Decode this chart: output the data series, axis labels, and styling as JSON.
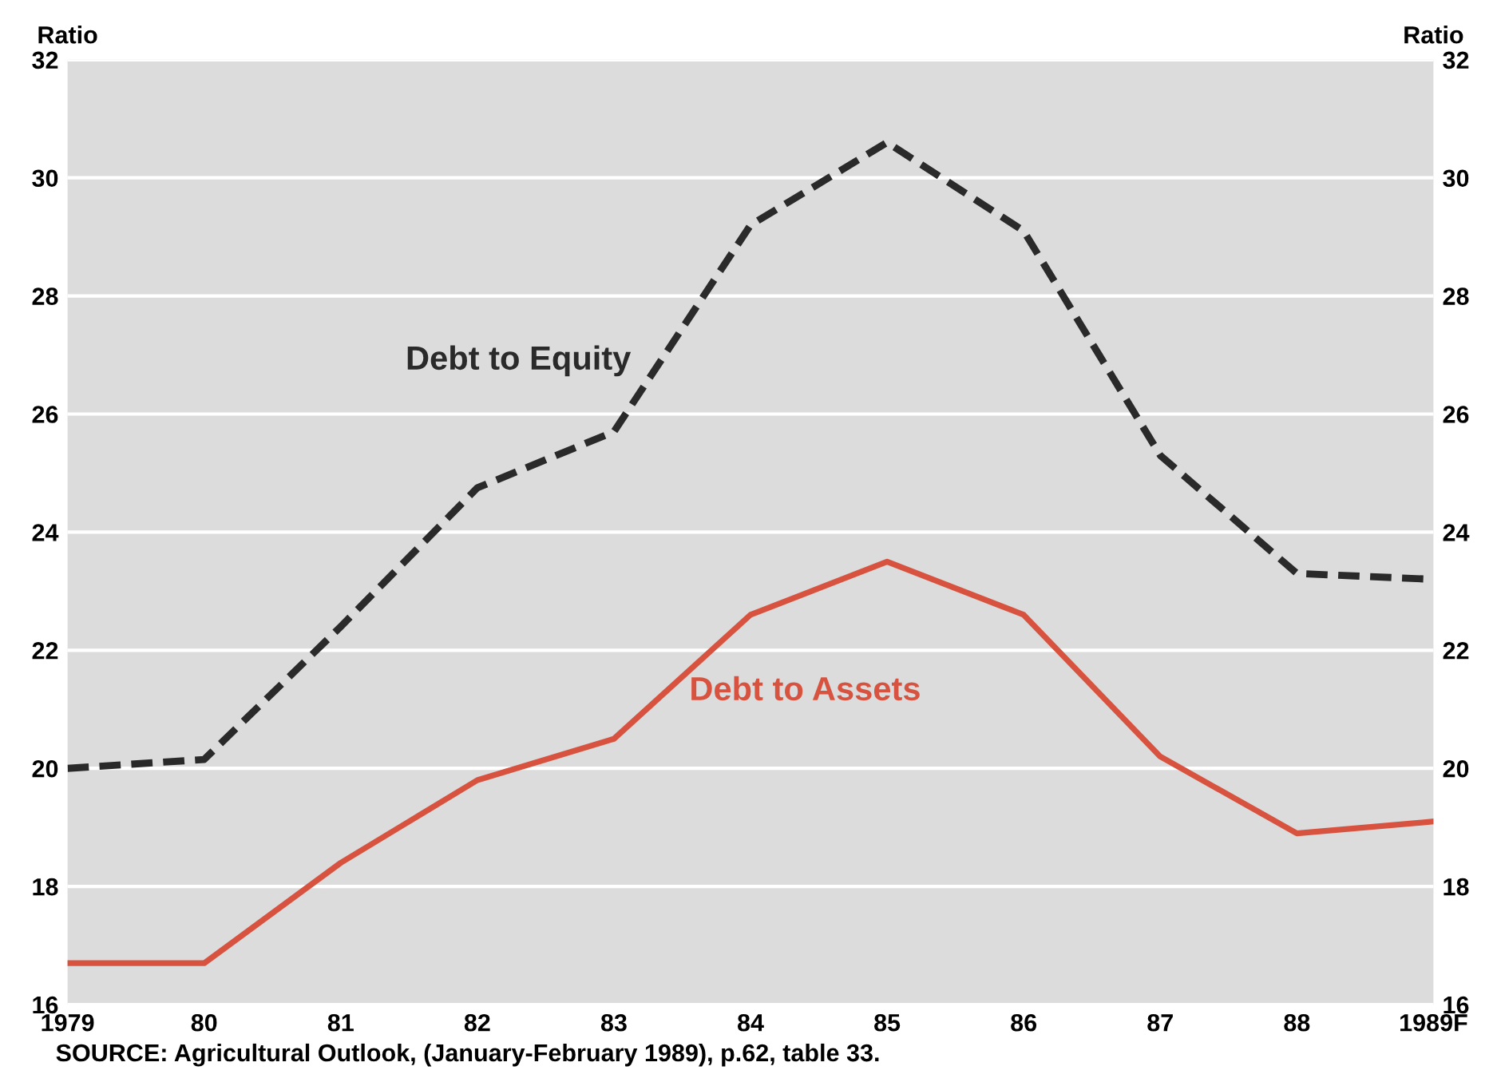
{
  "chart_data": {
    "type": "line",
    "ylabel": "Ratio",
    "y2label": "Ratio",
    "categories": [
      "1979",
      "80",
      "81",
      "82",
      "83",
      "84",
      "85",
      "86",
      "87",
      "88",
      "1989F"
    ],
    "series": [
      {
        "name": "Debt to Equity",
        "color": "#2a2a2a",
        "line_style": "dashed",
        "values": [
          20.0,
          20.15,
          22.4,
          24.75,
          25.7,
          29.2,
          30.6,
          29.1,
          25.3,
          23.3,
          23.2
        ]
      },
      {
        "name": "Debt to Assets",
        "color": "#d8533f",
        "line_style": "solid",
        "values": [
          16.7,
          16.7,
          18.4,
          19.8,
          20.5,
          22.6,
          23.5,
          22.6,
          20.2,
          18.9,
          19.1
        ]
      }
    ],
    "ylim": [
      16,
      32
    ],
    "yticks": [
      16,
      18,
      20,
      22,
      24,
      26,
      28,
      30,
      32
    ],
    "y2lim": [
      16,
      32
    ],
    "y2ticks": [
      16,
      18,
      20,
      22,
      24,
      26,
      28,
      30,
      32
    ],
    "grid": "y",
    "legend": false,
    "marker": "none",
    "annotations": [
      "SOURCE: Agricultural Outlook, (January-February 1989), p.62, table 33."
    ]
  }
}
